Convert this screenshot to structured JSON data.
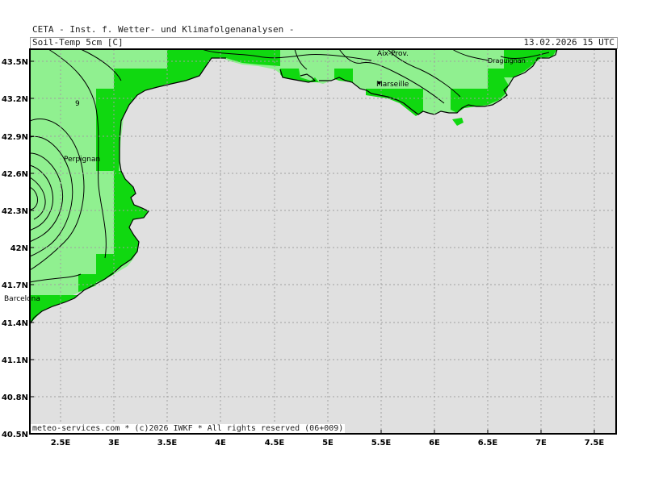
{
  "header": {
    "title": "CETA - Inst. f. Wetter- und Klimafolgenanalysen -",
    "parameter": "Soil-Temp 5cm [C]",
    "timestamp": "13.02.2026 15 UTC"
  },
  "footer": {
    "credit": "meteo-services.com * (c)2026 IWKF * All rights reserved (06+009)"
  },
  "axes": {
    "lat_labels": [
      "43.5N",
      "43.2N",
      "42.9N",
      "42.6N",
      "42.3N",
      "42N",
      "41.7N",
      "41.4N",
      "41.1N",
      "40.8N",
      "40.5N"
    ],
    "lon_labels": [
      "2.5E",
      "3E",
      "3.5E",
      "4E",
      "4.5E",
      "5E",
      "5.5E",
      "6E",
      "6.5E",
      "7E",
      "7.5E"
    ]
  },
  "places": {
    "barcelona": "Barcelona",
    "perpignan": "Perpignan",
    "aix": "Aix-Prov.",
    "marseille": "Marseille",
    "draguignan": "Draguignan"
  },
  "contour_labels": {
    "c9": "9"
  },
  "colors": {
    "sea": "#e0e0e0",
    "land_light": "#90f090",
    "land_bright": "#10d810",
    "contour": "#000000",
    "grid": "#a0a0a0"
  }
}
